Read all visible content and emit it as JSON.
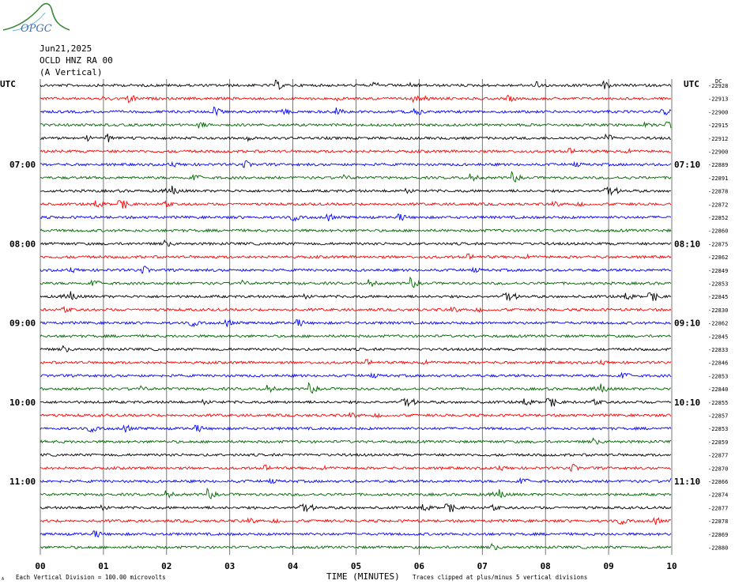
{
  "logo": {
    "text": "OPGC",
    "color": "#3a8a3a"
  },
  "header": {
    "date": "Jun21,2025",
    "station": "OCLD HNZ RA 00",
    "component": "(A Vertical)"
  },
  "left_axis_label": "UTC",
  "right_axis_label": "UTC",
  "dc_label": "DC",
  "footer": {
    "scale_note": "Each Vertical Division =  100.00 microvolts",
    "xlabel": "TIME (MINUTES)",
    "clip_note": "Traces clipped at plus/minus 5 vertical divisions",
    "corner_mark": "A"
  },
  "chart_data": {
    "type": "line",
    "title": "",
    "xlabel": "TIME (MINUTES)",
    "xlim": [
      0,
      10
    ],
    "x_ticks": [
      "00",
      "01",
      "02",
      "03",
      "04",
      "05",
      "06",
      "07",
      "08",
      "09",
      "10"
    ],
    "grid": true,
    "trace_colors": [
      "#000000",
      "#ff0000",
      "#0000ff",
      "#006600"
    ],
    "left_hour_labels": [
      {
        "trace_index": 6,
        "label": "07:00"
      },
      {
        "trace_index": 12,
        "label": "08:00"
      },
      {
        "trace_index": 18,
        "label": "09:00"
      },
      {
        "trace_index": 24,
        "label": "10:00"
      },
      {
        "trace_index": 30,
        "label": "11:00"
      }
    ],
    "right_hour_labels": [
      {
        "trace_index": 6,
        "label": "07:10"
      },
      {
        "trace_index": 12,
        "label": "08:10"
      },
      {
        "trace_index": 18,
        "label": "09:10"
      },
      {
        "trace_index": 24,
        "label": "10:10"
      },
      {
        "trace_index": 30,
        "label": "11:10"
      }
    ],
    "dc_offsets": [
      "-22928",
      "-22913",
      "-22900",
      "-22915",
      "-22912",
      "-22900",
      "-22889",
      "-22891",
      "-22878",
      "-22872",
      "-22852",
      "-22860",
      "-22875",
      "-22862",
      "-22849",
      "-22853",
      "-22845",
      "-22830",
      "-22862",
      "-22845",
      "-22833",
      "-22846",
      "-22853",
      "-22840",
      "-22855",
      "-22857",
      "-22853",
      "-22859",
      "-22877",
      "-22870",
      "-22866",
      "-22874",
      "-22877",
      "-22878",
      "-22869",
      "-22880"
    ]
  }
}
